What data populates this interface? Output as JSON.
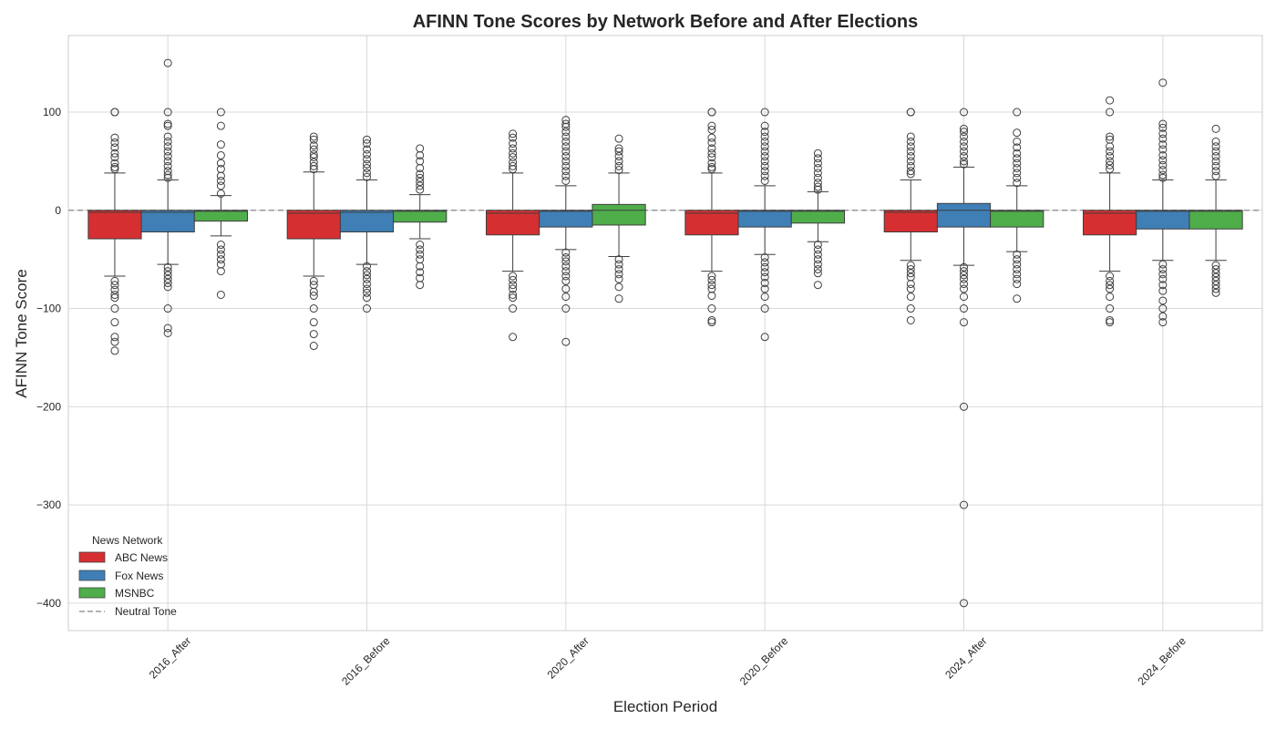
{
  "chart_data": {
    "type": "boxplot",
    "title": "AFINN Tone Scores by Network Before and After Elections",
    "xlabel": "Election Period",
    "ylabel": "AFINN Tone Score",
    "ylim": [
      -428,
      178
    ],
    "yticks": [
      100,
      0,
      -100,
      -200,
      -300,
      -400
    ],
    "ytick_labels": [
      "100",
      "0",
      "−100",
      "−200",
      "−300",
      "−400"
    ],
    "grid": true,
    "categories": [
      "2016_After",
      "2016_Before",
      "2020_After",
      "2020_Before",
      "2024_After",
      "2024_Before"
    ],
    "reference_line": {
      "label": "Neutral Tone",
      "y": 0,
      "color": "#999999",
      "style": "dashed"
    },
    "legend": {
      "title": "News Network",
      "position": "bottom-left"
    },
    "series": [
      {
        "name": "ABC News",
        "color": "#d62f32",
        "boxes": [
          {
            "q1": -29,
            "median": -2,
            "q3": 0,
            "whisker_low": -67,
            "whisker_high": 38,
            "outliers": [
              100,
              100,
              74,
              69,
              64,
              58,
              54,
              48,
              44,
              42,
              -72,
              -76,
              -81,
              -86,
              -89,
              -100,
              -114,
              -129,
              -134,
              -143
            ]
          },
          {
            "q1": -29,
            "median": -3,
            "q3": 0,
            "whisker_low": -67,
            "whisker_high": 39,
            "outliers": [
              75,
              72,
              66,
              62,
              57,
              54,
              49,
              45,
              42,
              -72,
              -76,
              -83,
              -87,
              -100,
              -114,
              -126,
              -138
            ]
          },
          {
            "q1": -25,
            "median": -3,
            "q3": 0,
            "whisker_low": -62,
            "whisker_high": 38,
            "outliers": [
              78,
              74,
              68,
              63,
              58,
              54,
              49,
              45,
              42,
              -67,
              -71,
              -76,
              -80,
              -86,
              -89,
              -100,
              -129
            ]
          },
          {
            "q1": -25,
            "median": -3,
            "q3": 0,
            "whisker_low": -62,
            "whisker_high": 38,
            "outliers": [
              100,
              100,
              86,
              82,
              74,
              69,
              63,
              58,
              54,
              48,
              44,
              42,
              -67,
              -71,
              -76,
              -80,
              -87,
              -100,
              -112,
              -114
            ]
          },
          {
            "q1": -22,
            "median": -2,
            "q3": 0,
            "whisker_low": -51,
            "whisker_high": 31,
            "outliers": [
              100,
              100,
              75,
              70,
              65,
              60,
              55,
              50,
              45,
              40,
              37,
              -56,
              -60,
              -64,
              -68,
              -75,
              -80,
              -88,
              -100,
              -112
            ]
          },
          {
            "q1": -25,
            "median": -3,
            "q3": 0,
            "whisker_low": -62,
            "whisker_high": 38,
            "outliers": [
              112,
              100,
              75,
              72,
              65,
              60,
              55,
              50,
              46,
              42,
              -67,
              -72,
              -76,
              -80,
              -88,
              -100,
              -112,
              -114
            ]
          }
        ]
      },
      {
        "name": "Fox News",
        "color": "#3f7fb6",
        "boxes": [
          {
            "q1": -22,
            "median": -2,
            "q3": 0,
            "whisker_low": -55,
            "whisker_high": 31,
            "outliers": [
              150,
              100,
              88,
              86,
              75,
              70,
              65,
              60,
              55,
              50,
              45,
              40,
              36,
              33,
              -58,
              -62,
              -66,
              -70,
              -74,
              -78,
              -100,
              -120,
              -125
            ]
          },
          {
            "q1": -22,
            "median": -2,
            "q3": 0,
            "whisker_low": -55,
            "whisker_high": 31,
            "outliers": [
              72,
              68,
              62,
              57,
              52,
              47,
              43,
              38,
              34,
              -57,
              -62,
              -66,
              -70,
              -75,
              -80,
              -84,
              -89,
              -100
            ]
          },
          {
            "q1": -17,
            "median": -1,
            "q3": 0,
            "whisker_low": -40,
            "whisker_high": 25,
            "outliers": [
              92,
              88,
              85,
              80,
              75,
              70,
              65,
              60,
              55,
              50,
              45,
              40,
              35,
              30,
              -43,
              -48,
              -52,
              -57,
              -62,
              -67,
              -72,
              -80,
              -88,
              -100,
              -134
            ]
          },
          {
            "q1": -17,
            "median": -1,
            "q3": 0,
            "whisker_low": -45,
            "whisker_high": 25,
            "outliers": [
              100,
              86,
              80,
              75,
              70,
              65,
              60,
              55,
              50,
              45,
              40,
              35,
              30,
              -48,
              -53,
              -58,
              -63,
              -68,
              -74,
              -80,
              -88,
              -100,
              -129
            ]
          },
          {
            "q1": -17,
            "median": 0,
            "q3": 7,
            "whisker_low": -56,
            "whisker_high": 44,
            "outliers": [
              100,
              83,
              80,
              75,
              70,
              65,
              60,
              55,
              50,
              47,
              -58,
              -62,
              -66,
              -70,
              -75,
              -80,
              -88,
              -100,
              -114,
              -200,
              -300,
              -400
            ]
          },
          {
            "q1": -19,
            "median": -1,
            "q3": 0,
            "whisker_low": -51,
            "whisker_high": 31,
            "outliers": [
              130,
              88,
              84,
              78,
              73,
              67,
              62,
              56,
              51,
              46,
              41,
              36,
              33,
              -55,
              -60,
              -65,
              -70,
              -76,
              -82,
              -92,
              -100,
              -108,
              -114
            ]
          }
        ]
      },
      {
        "name": "MSNBC",
        "color": "#4fad4a",
        "boxes": [
          {
            "q1": -11,
            "median": -1,
            "q3": 0,
            "whisker_low": -26,
            "whisker_high": 15,
            "outliers": [
              100,
              86,
              67,
              56,
              48,
              42,
              35,
              30,
              25,
              17,
              -35,
              -40,
              -45,
              -50,
              -55,
              -62,
              -86
            ]
          },
          {
            "q1": -12,
            "median": -1,
            "q3": 0,
            "whisker_low": -29,
            "whisker_high": 16,
            "outliers": [
              63,
              56,
              50,
              43,
              37,
              33,
              29,
              25,
              21,
              -35,
              -40,
              -45,
              -50,
              -57,
              -63,
              -69,
              -76
            ]
          },
          {
            "q1": -15,
            "median": 0,
            "q3": 6,
            "whisker_low": -47,
            "whisker_high": 38,
            "outliers": [
              73,
              63,
              60,
              55,
              50,
              45,
              41,
              -50,
              -55,
              -60,
              -65,
              -70,
              -78,
              -90
            ]
          },
          {
            "q1": -13,
            "median": -1,
            "q3": 0,
            "whisker_low": -32,
            "whisker_high": 19,
            "outliers": [
              58,
              53,
              48,
              43,
              38,
              33,
              28,
              24,
              21,
              -35,
              -40,
              -45,
              -50,
              -55,
              -60,
              -64,
              -76
            ]
          },
          {
            "q1": -17,
            "median": -1,
            "q3": 0,
            "whisker_low": -42,
            "whisker_high": 25,
            "outliers": [
              100,
              79,
              70,
              64,
              58,
              53,
              48,
              43,
              38,
              33,
              28,
              -45,
              -50,
              -55,
              -60,
              -65,
              -70,
              -75,
              -90
            ]
          },
          {
            "q1": -19,
            "median": -1,
            "q3": 0,
            "whisker_low": -51,
            "whisker_high": 31,
            "outliers": [
              83,
              70,
              65,
              60,
              55,
              50,
              45,
              40,
              35,
              -56,
              -60,
              -64,
              -68,
              -72,
              -76,
              -80,
              -84
            ]
          }
        ]
      }
    ]
  }
}
